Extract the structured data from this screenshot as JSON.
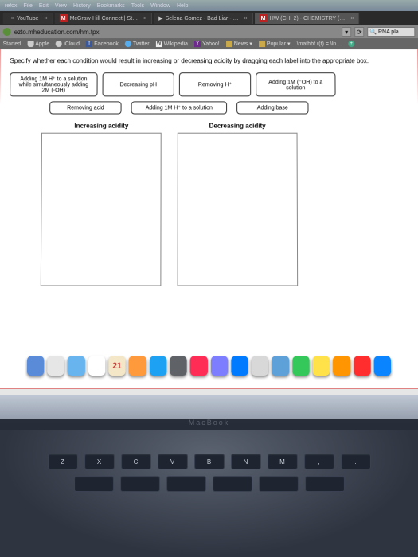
{
  "menubar": {
    "app": "refox",
    "items": [
      "File",
      "Edit",
      "View",
      "History",
      "Bookmarks",
      "Tools",
      "Window",
      "Help"
    ]
  },
  "tabs": [
    {
      "label": "YouTube",
      "badge": ""
    },
    {
      "label": "McGraw-Hill Connect | St…",
      "badge": "M"
    },
    {
      "label": "Selena Gomez - Bad Liar - …",
      "badge": ""
    },
    {
      "label": "HW (CH. 2) - CHEMISTRY (…",
      "badge": "M",
      "active": true
    }
  ],
  "urlbar": {
    "url": "ezto.mheducation.com/hm.tpx",
    "search_placeholder": "RNA pla"
  },
  "bookmarks": [
    {
      "label": "Started"
    },
    {
      "label": "Apple"
    },
    {
      "label": "iCloud"
    },
    {
      "label": "Facebook"
    },
    {
      "label": "Twitter"
    },
    {
      "label": "Wikipedia"
    },
    {
      "label": "Yahoo!"
    },
    {
      "label": "News"
    },
    {
      "label": "Popular"
    },
    {
      "label": "\\mathbf r(t) = \\ln…"
    }
  ],
  "question": {
    "instruction": "Specify whether each condition would result in increasing or decreasing acidity by dragging each label into the appropriate box.",
    "items_row1": [
      "Adding 1M H⁺ to a solution while simultaneously adding 2M (-OH)",
      "Decreasing pH",
      "Removing H⁺",
      "Adding 1M (⁻OH) to a solution"
    ],
    "items_row2": [
      "Removing acid",
      "Adding 1M H⁺ to a solution",
      "Adding base"
    ],
    "drop_left_title": "Increasing acidity",
    "drop_right_title": "Decreasing acidity",
    "border_color": "#d33333"
  },
  "dock": {
    "icons": [
      {
        "color": "#5a8bd8"
      },
      {
        "color": "#e6e6e6"
      },
      {
        "color": "#68b4ef"
      },
      {
        "color": "#ffffff"
      },
      {
        "color": "#f3e7c7"
      },
      {
        "color": "#ff9a3c"
      },
      {
        "color": "#1da1f2"
      },
      {
        "color": "#5f6368"
      },
      {
        "color": "#ff2d55"
      },
      {
        "color": "#7d7dff"
      },
      {
        "color": "#007aff"
      },
      {
        "color": "#d8d8d8"
      },
      {
        "color": "#5ea0d8"
      },
      {
        "color": "#34c759"
      },
      {
        "color": "#ffe14a"
      },
      {
        "color": "#ff9500"
      },
      {
        "color": "#ff2d2d"
      },
      {
        "color": "#0a84ff"
      }
    ],
    "cal_day": "21"
  },
  "keyboard": {
    "row1": [
      "Z",
      "X",
      "C",
      "V",
      "B",
      "N",
      "M",
      ",",
      "."
    ],
    "row2": [
      "",
      "",
      "",
      "",
      "",
      ""
    ]
  },
  "laptop_label": "MacBook"
}
